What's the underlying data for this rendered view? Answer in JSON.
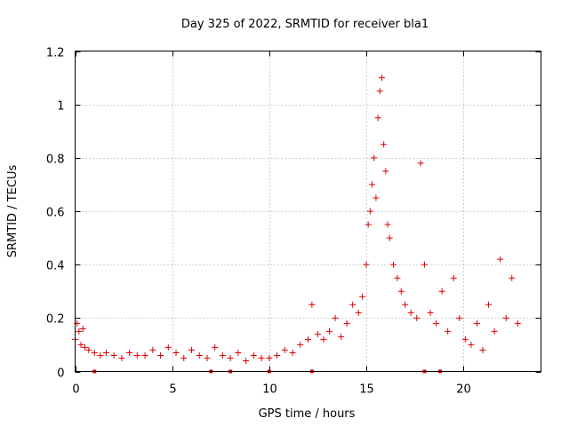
{
  "chart_data": {
    "type": "scatter",
    "title": "Day 325 of 2022, SRMTID for receiver bla1",
    "xlabel": "GPS time / hours",
    "ylabel": "SRMTID / TECUs",
    "xlim": [
      0,
      24
    ],
    "ylim": [
      0,
      1.2
    ],
    "x_ticks": [
      0,
      5,
      10,
      15,
      20
    ],
    "x_tick_labels": [
      "0",
      "5",
      "10",
      "15",
      "20"
    ],
    "y_ticks": [
      0,
      0.2,
      0.4,
      0.6,
      0.8,
      1,
      1.2
    ],
    "y_tick_labels": [
      "0",
      "0.2",
      "0.4",
      "0.6",
      "0.8",
      "1",
      "1.2"
    ],
    "grid": true,
    "marker": "+",
    "color": "#e00000",
    "series": [
      {
        "name": "SRMTID",
        "x": [
          0.0,
          0.1,
          0.2,
          0.3,
          0.4,
          0.5,
          0.7,
          1.0,
          1.3,
          1.6,
          2.0,
          2.4,
          2.8,
          3.2,
          3.6,
          4.0,
          4.4,
          4.8,
          5.2,
          5.6,
          6.0,
          6.4,
          6.8,
          7.2,
          7.6,
          8.0,
          8.4,
          8.8,
          9.2,
          9.6,
          10.0,
          10.4,
          10.8,
          11.2,
          11.6,
          12.0,
          12.2,
          12.5,
          12.8,
          13.1,
          13.4,
          13.7,
          14.0,
          14.3,
          14.6,
          14.8,
          15.0,
          15.1,
          15.2,
          15.3,
          15.4,
          15.5,
          15.6,
          15.7,
          15.8,
          15.9,
          16.0,
          16.1,
          16.2,
          16.4,
          16.6,
          16.8,
          17.0,
          17.3,
          17.6,
          17.8,
          18.0,
          18.3,
          18.6,
          18.9,
          19.2,
          19.5,
          19.8,
          20.1,
          20.4,
          20.7,
          21.0,
          21.3,
          21.6,
          21.9,
          22.2,
          22.5,
          22.8
        ],
        "y": [
          0.12,
          0.18,
          0.15,
          0.1,
          0.16,
          0.09,
          0.08,
          0.07,
          0.06,
          0.07,
          0.06,
          0.05,
          0.07,
          0.06,
          0.06,
          0.08,
          0.06,
          0.09,
          0.07,
          0.05,
          0.08,
          0.06,
          0.05,
          0.09,
          0.06,
          0.05,
          0.07,
          0.04,
          0.06,
          0.05,
          0.05,
          0.06,
          0.08,
          0.07,
          0.1,
          0.12,
          0.25,
          0.14,
          0.12,
          0.15,
          0.2,
          0.13,
          0.18,
          0.25,
          0.22,
          0.28,
          0.4,
          0.55,
          0.6,
          0.7,
          0.8,
          0.65,
          0.95,
          1.05,
          1.1,
          0.85,
          0.75,
          0.55,
          0.5,
          0.4,
          0.35,
          0.3,
          0.25,
          0.22,
          0.2,
          0.78,
          0.4,
          0.22,
          0.18,
          0.3,
          0.15,
          0.35,
          0.2,
          0.12,
          0.1,
          0.18,
          0.08,
          0.25,
          0.15,
          0.42,
          0.2,
          0.35,
          0.18
        ]
      }
    ],
    "gap_markers_x": [
      1.0,
      7.0,
      8.0,
      10.0,
      12.2,
      18.0,
      18.8
    ]
  }
}
